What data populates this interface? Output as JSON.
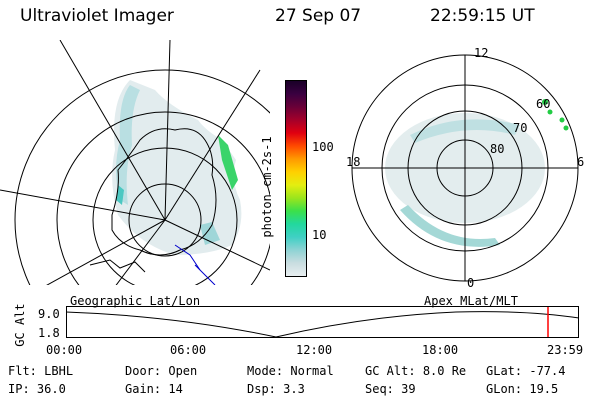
{
  "header": {
    "instrument": "Ultraviolet Imager",
    "date": "27 Sep 07",
    "time": "22:59:15 UT"
  },
  "colorbar": {
    "label": "photon cm-2s-1",
    "ticks": [
      "100",
      "10"
    ],
    "colors": [
      "#e8eef0",
      "#c9dde0",
      "#8ed3d4",
      "#3fd0c4",
      "#22d89e",
      "#3be04a",
      "#9be51c",
      "#e4ee10",
      "#ffd000",
      "#ff9a00",
      "#ff4a00",
      "#e00010",
      "#a4002a",
      "#6a0038",
      "#3a0040",
      "#1a0028"
    ]
  },
  "polar_plot": {
    "labels": [
      "12",
      "60",
      "70",
      "80",
      "18",
      "6",
      "0"
    ]
  },
  "panel_labels": {
    "left": "Geographic Lat/Lon",
    "right": "Apex MLat/MLT"
  },
  "gc_alt_plot": {
    "axis_label": "GC Alt",
    "y_ticks": [
      "9.0",
      "1.8"
    ],
    "x_ticks": [
      "00:00",
      "06:00",
      "12:00",
      "18:00",
      "23:59"
    ],
    "marker_color": "#ff0000"
  },
  "info": {
    "row1": [
      {
        "key": "Flt:",
        "val": "LBHL"
      },
      {
        "key": "Door:",
        "val": "Open"
      },
      {
        "key": "Mode:",
        "val": "Normal"
      },
      {
        "key": "GC Alt:",
        "val": "8.0 Re"
      },
      {
        "key": "GLat:",
        "val": "-77.4"
      }
    ],
    "row2": [
      {
        "key": "IP:",
        "val": "36.0"
      },
      {
        "key": "Gain:",
        "val": "14"
      },
      {
        "key": "Dsp:",
        "val": "3.3"
      },
      {
        "key": "Seq:",
        "val": "39"
      },
      {
        "key": "GLon:",
        "val": "19.5"
      }
    ]
  }
}
